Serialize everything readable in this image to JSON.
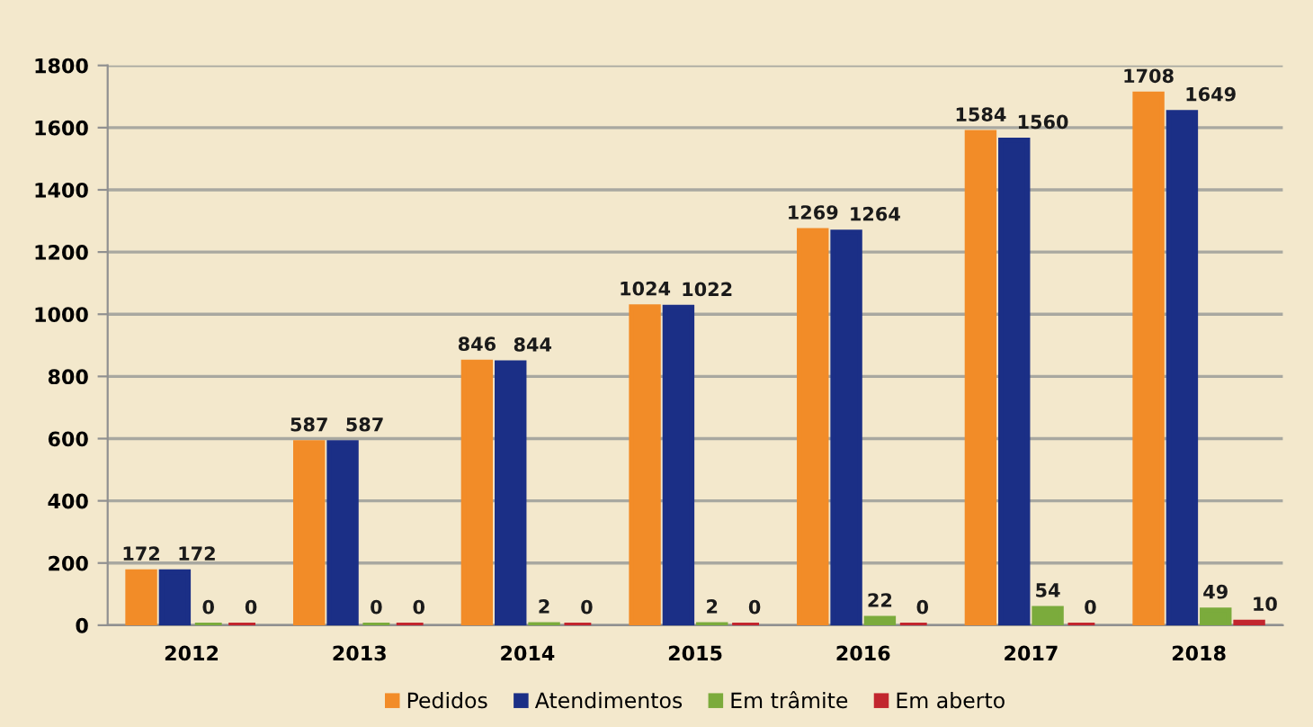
{
  "chart_data": {
    "type": "bar",
    "categories": [
      "2012",
      "2013",
      "2014",
      "2015",
      "2016",
      "2017",
      "2018"
    ],
    "series": [
      {
        "name": "Pedidos",
        "color": "#f28c28",
        "values": [
          172,
          587,
          846,
          1024,
          1269,
          1584,
          1708
        ]
      },
      {
        "name": "Atendimentos",
        "color": "#1b2f86",
        "values": [
          172,
          587,
          844,
          1022,
          1264,
          1560,
          1649
        ]
      },
      {
        "name": "Em trâmite",
        "color": "#7bab3c",
        "values": [
          0,
          0,
          2,
          2,
          22,
          54,
          49
        ]
      },
      {
        "name": "Em aberto",
        "color": "#c2262e",
        "values": [
          0,
          0,
          0,
          0,
          0,
          0,
          10
        ]
      }
    ],
    "ylim": [
      0,
      1800
    ],
    "yticks": [
      0,
      200,
      400,
      600,
      800,
      1000,
      1200,
      1400,
      1600,
      1800
    ],
    "grid": "y",
    "legend": "bottom",
    "data_labels": true
  }
}
